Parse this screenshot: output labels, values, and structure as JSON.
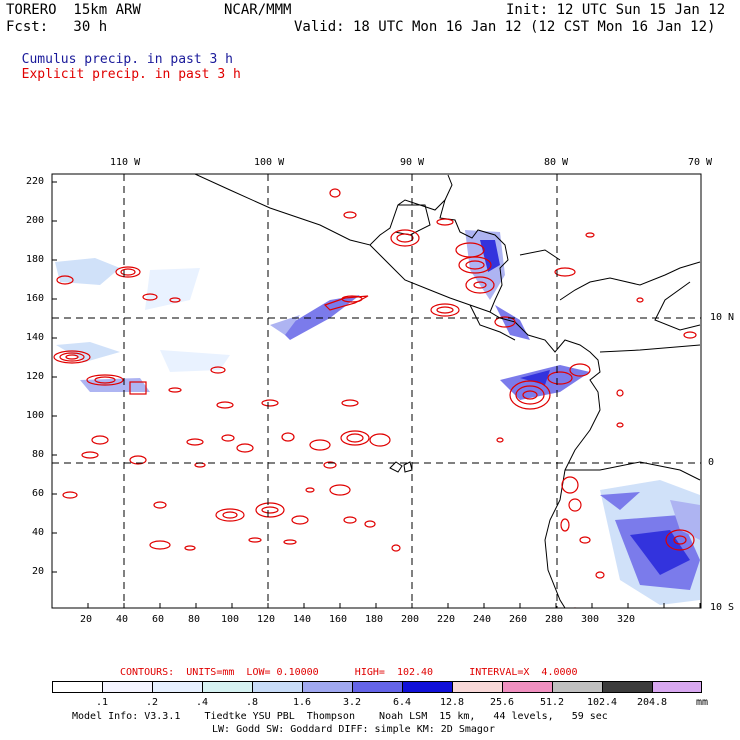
{
  "header": {
    "model": "TORERO  15km ARW",
    "org": "NCAR/MMM",
    "init": "Init: 12 UTC Sun 15 Jan 12",
    "fcst": "Fcst:   30 h",
    "valid": "Valid: 18 UTC Mon 16 Jan 12 (12 CST Mon 16 Jan 12)",
    "legend_cumulus": "Cumulus precip. in past 3 h",
    "legend_explicit": "Explicit precip. in past 3 h"
  },
  "colors": {
    "cumulus": "#1a1a9a",
    "explicit": "#e00000",
    "land": "#000000"
  },
  "axes": {
    "top_lon": [
      "110 W",
      "100 W",
      "90 W",
      "80 W",
      "70 W"
    ],
    "right_lat": [
      "10 N",
      "0",
      "10 S"
    ],
    "x_ticks": [
      "20",
      "40",
      "60",
      "80",
      "100",
      "120",
      "140",
      "160",
      "180",
      "200",
      "220",
      "240",
      "260",
      "280",
      "300",
      "320"
    ],
    "y_ticks": [
      "220",
      "200",
      "180",
      "160",
      "140",
      "120",
      "100",
      "80",
      "60",
      "40",
      "20"
    ]
  },
  "contour_info": {
    "text": "CONTOURS:  UNITS=mm  LOW= 0.10000      HIGH=  102.40      INTERVAL=X  4.0000"
  },
  "colorbar": {
    "labels": [
      ".1",
      ".2",
      ".4",
      ".8",
      "1.6",
      "3.2",
      "6.4",
      "12.8",
      "25.6",
      "51.2",
      "102.4",
      "204.8"
    ],
    "unit": "mm",
    "colors": [
      "#ffffff",
      "#f4f4ff",
      "#e6f0ff",
      "#d6f2f2",
      "#c8dcf8",
      "#a0a8f0",
      "#6464e8",
      "#1010d8",
      "#f8d8d8",
      "#f090c0",
      "#c0c0c0",
      "#3c3c3c",
      "#d8a8f0"
    ]
  },
  "footer": {
    "line1": "Model Info: V3.3.1    Tiedtke YSU PBL  Thompson    Noah LSM  15 km,   44 levels,   59 sec",
    "line2": "LW: Godd SW: Goddard DIFF: simple KM: 2D Smagor"
  }
}
